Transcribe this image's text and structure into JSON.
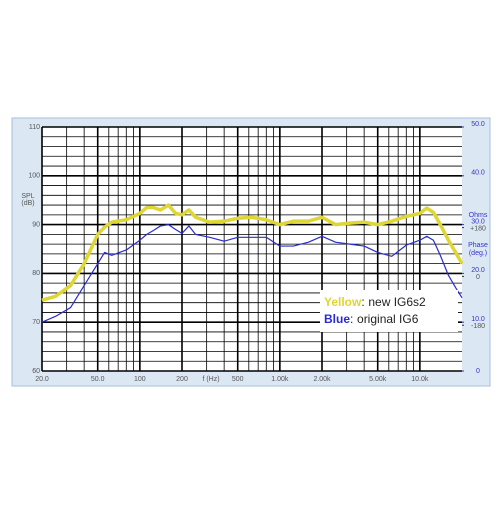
{
  "chart_data": {
    "type": "line",
    "y_label": "SPL",
    "y_unit": "(dB)",
    "x_label": "f (Hz)",
    "y2_label": "Ohms",
    "y3_label": "Phase",
    "y3_unit": "(deg.)",
    "log_x": true,
    "grid": true,
    "xlim": [
      20,
      20000
    ],
    "xticks": [
      {
        "value": 20,
        "label": "20.0"
      },
      {
        "value": 50,
        "label": "50.0"
      },
      100,
      200,
      500,
      {
        "value": 1000,
        "label": "1.00k"
      },
      {
        "value": 2000,
        "label": "2.00k"
      },
      {
        "value": 5000,
        "label": "5.00k"
      },
      {
        "value": 10000,
        "label": "10.0k"
      }
    ],
    "ylim": [
      60,
      110
    ],
    "yticks": [
      60,
      70,
      80,
      90,
      100,
      110
    ],
    "y2lim": [
      0,
      50
    ],
    "y2ticks": [
      0,
      {
        "value": 10,
        "label": "10.0"
      },
      {
        "value": 20,
        "label": "20.0"
      },
      {
        "value": 30,
        "label": "30.0"
      },
      {
        "value": 40,
        "label": "40.0"
      },
      {
        "value": 50,
        "label": "50.0"
      }
    ],
    "y3lim": [
      -360,
      540
    ],
    "y3ticks": [
      {
        "value": 180,
        "label": "+180"
      },
      0,
      -180
    ],
    "x": [
      20,
      25,
      32,
      40,
      50,
      56,
      63,
      80,
      100,
      112,
      125,
      140,
      160,
      180,
      200,
      224,
      250,
      315,
      400,
      500,
      630,
      800,
      1000,
      1250,
      1600,
      2000,
      2500,
      3150,
      4000,
      5000,
      6300,
      8000,
      10000,
      11200,
      12500,
      14000,
      16000,
      18000,
      20000
    ],
    "series": [
      {
        "name": "new IG6s2",
        "color_word": "Yellow",
        "color": "#ddd633",
        "values": [
          74.5,
          75.3,
          77.5,
          82,
          88,
          89.5,
          90.5,
          91,
          92.3,
          93.5,
          93.5,
          93,
          94,
          92.3,
          92,
          93,
          91.5,
          90.5,
          90.7,
          91.3,
          91.5,
          91,
          90,
          90.7,
          90.7,
          91.5,
          90,
          90.3,
          90.5,
          90,
          90.7,
          91.7,
          92.3,
          93.4,
          92.5,
          90,
          86.8,
          84.3,
          82
        ]
      },
      {
        "name": "original IG6",
        "color_word": "Blue",
        "color": "#2b2bd0",
        "values": [
          70,
          71.2,
          73,
          77.5,
          82,
          84.3,
          83.7,
          84.8,
          86.8,
          88,
          88.8,
          89.7,
          90,
          89,
          88.2,
          89.7,
          88,
          87.4,
          86.6,
          87.4,
          87.4,
          87.4,
          85.6,
          85.6,
          86.4,
          87.6,
          86.4,
          86,
          85.6,
          84.3,
          83.5,
          85.8,
          86.8,
          87.6,
          86.8,
          83.7,
          79.6,
          77.1,
          75
        ]
      }
    ]
  }
}
